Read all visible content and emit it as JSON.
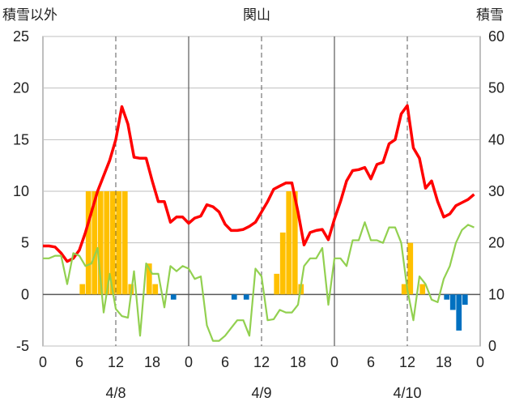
{
  "header": {
    "left_axis_title": "積雪以外",
    "center_title": "関山",
    "right_axis_title": "積雪"
  },
  "chart_data": {
    "type": "bar+line",
    "title": "関山",
    "hours_per_day": 24,
    "step_hours": 1,
    "left_axis": {
      "label": "積雪以外",
      "ylim": [
        -5,
        25
      ],
      "ticks": [
        "-5",
        "0",
        "5",
        "10",
        "15",
        "20",
        "25"
      ]
    },
    "right_axis": {
      "label": "積雪",
      "ylim": [
        0,
        60
      ],
      "ticks": [
        "0",
        "10",
        "20",
        "30",
        "40",
        "50",
        "60"
      ]
    },
    "x_tick_labels": [
      "0",
      "6",
      "12",
      "18",
      "0",
      "6",
      "12",
      "18",
      "0",
      "6",
      "12",
      "18",
      "0"
    ],
    "date_labels": [
      "4/8",
      "4/9",
      "4/10"
    ],
    "grid": {
      "vertical_solid_at_hours": [
        0,
        24,
        48,
        72
      ],
      "vertical_dashed_at_hours": [
        12,
        36,
        60
      ]
    },
    "series": [
      {
        "kind": "bar",
        "axis": "left",
        "color": "#FFC000",
        "values": [
          0,
          0,
          0,
          0,
          0,
          0,
          1,
          10,
          10,
          10,
          10,
          10,
          10,
          10,
          1,
          0,
          0,
          3,
          1,
          0,
          0,
          0,
          0,
          0,
          0,
          0,
          0,
          0,
          0,
          0,
          0,
          0,
          0,
          0,
          0,
          0,
          0,
          0,
          2,
          6,
          10,
          10,
          1,
          0,
          0,
          0,
          0,
          0,
          0,
          0,
          0,
          0,
          0,
          0,
          0,
          0,
          0,
          0,
          0,
          1,
          5,
          0,
          1,
          0,
          0,
          0,
          0,
          0,
          0,
          0,
          0,
          0
        ]
      },
      {
        "kind": "bar",
        "axis": "left",
        "color": "#0070C0",
        "values": [
          0,
          0,
          0,
          0,
          0,
          0,
          0,
          0,
          0,
          0,
          0,
          0,
          0,
          0,
          0,
          0,
          0,
          0,
          0,
          0,
          0,
          -0.5,
          0,
          0,
          0,
          0,
          0,
          0,
          0,
          0,
          0,
          -0.5,
          0,
          -0.5,
          0,
          0,
          0,
          0,
          0,
          0,
          0,
          0,
          0,
          0,
          0,
          0,
          0,
          0,
          0,
          0,
          0,
          0,
          0,
          0,
          0,
          0,
          0,
          0,
          0,
          0,
          0,
          0,
          0,
          0,
          0,
          0,
          -0.5,
          -1.5,
          -3.5,
          -1,
          0,
          0
        ]
      },
      {
        "kind": "line",
        "axis": "left",
        "color": "#FF0000",
        "values": [
          4.7,
          4.7,
          4.6,
          4,
          3.2,
          3.5,
          4.3,
          6,
          8,
          10,
          11.5,
          13,
          15,
          18.2,
          16.5,
          13.3,
          13.2,
          13.2,
          11,
          9,
          9,
          7,
          7.5,
          7.5,
          6.9,
          7.4,
          7.6,
          8.7,
          8.5,
          8,
          6.8,
          6.2,
          6.2,
          6.3,
          6.6,
          7,
          8,
          9,
          10.2,
          10.5,
          10.8,
          10.8,
          8,
          4.8,
          6,
          6.2,
          6.3,
          5.3,
          7.3,
          9,
          11,
          12,
          12.1,
          12.3,
          11.2,
          12.6,
          12.8,
          14.6,
          15,
          17.5,
          18.3,
          14.2,
          13.2,
          10.3,
          11,
          9,
          7.5,
          7.8,
          8.6,
          8.9,
          9.2,
          9.7
        ]
      },
      {
        "kind": "line",
        "axis": "right",
        "color": "#92D050",
        "values": [
          17,
          17,
          17.5,
          17.5,
          12,
          18,
          17.5,
          15.5,
          16,
          19,
          6.5,
          14,
          7.2,
          5.8,
          5.5,
          14.5,
          2,
          16,
          14,
          14,
          7.5,
          15.5,
          14.5,
          15.5,
          15,
          13,
          13.5,
          4,
          1,
          1,
          2,
          3.5,
          5,
          5,
          2,
          15,
          13.5,
          5,
          5.2,
          7,
          6.5,
          6.5,
          8,
          15.5,
          17,
          17,
          19,
          8,
          17,
          17,
          15.5,
          20.5,
          20.5,
          24,
          20.5,
          20.5,
          20,
          23,
          23,
          20,
          11,
          5,
          13.5,
          12,
          9,
          8.5,
          13,
          15.5,
          20,
          22.5,
          23.5,
          23
        ]
      }
    ]
  }
}
